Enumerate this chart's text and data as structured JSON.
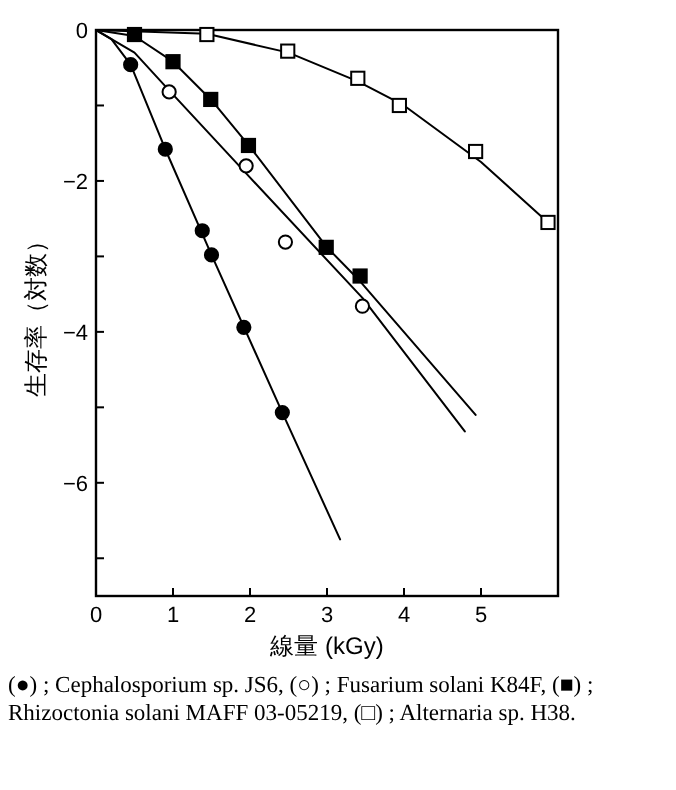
{
  "chart_data": {
    "type": "line",
    "xlabel": "線量 (kGy)",
    "ylabel": "生存率（対数）",
    "xlim": [
      0,
      6
    ],
    "xticks": [
      0,
      1,
      2,
      3,
      4,
      5,
      {
        "value": 6,
        "label": null
      }
    ],
    "ylim": [
      -7.5,
      0
    ],
    "yticks": [
      0,
      {
        "value": -1,
        "label": null
      },
      -2,
      {
        "value": -3,
        "label": null
      },
      -4,
      {
        "value": -5,
        "label": null
      },
      -6,
      {
        "value": -7,
        "label": null
      }
    ],
    "grid": false,
    "line_style": "solid",
    "series": [
      {
        "type": "scatter",
        "marker": "circle",
        "color": "#000000",
        "x": [
          0.45,
          0.9,
          1.38,
          1.5,
          1.92,
          2.42
        ],
        "values": [
          -0.46,
          -1.58,
          -2.66,
          -2.98,
          -3.94,
          -5.07
        ]
      },
      {
        "type": "scatter",
        "marker": "circle",
        "color": "#ffffff",
        "x": [
          0.95,
          1.95,
          2.46,
          3.46
        ],
        "values": [
          -0.82,
          -1.8,
          -2.81,
          -3.66
        ]
      },
      {
        "type": "scatter",
        "marker": "square",
        "color": "#000000",
        "x": [
          0.5,
          1.0,
          1.49,
          1.98,
          2.99,
          3.43
        ],
        "values": [
          -0.06,
          -0.42,
          -0.92,
          -1.53,
          -2.88,
          -3.26
        ]
      },
      {
        "type": "scatter",
        "marker": "square",
        "color": "#ffffff",
        "x": [
          1.44,
          2.49,
          3.4,
          3.94,
          4.93,
          5.87
        ],
        "values": [
          -0.06,
          -0.28,
          -0.64,
          -1.0,
          -1.61,
          -2.55
        ]
      },
      {
        "color": "#000000",
        "x": [
          0,
          0.2,
          0.45,
          0.9,
          1.5,
          2.42,
          3.17
        ],
        "values": [
          0,
          -0.12,
          -0.46,
          -1.58,
          -2.98,
          -5.07,
          -6.75
        ]
      },
      {
        "color": "#000000",
        "x": [
          0,
          0.5,
          0.95,
          1.95,
          3.46,
          4.79
        ],
        "values": [
          0,
          -0.3,
          -0.8,
          -1.9,
          -3.55,
          -5.32
        ]
      },
      {
        "color": "#000000",
        "x": [
          0,
          0.5,
          1.0,
          1.5,
          2.0,
          3.0,
          3.43,
          4.93
        ],
        "values": [
          0,
          -0.08,
          -0.42,
          -0.93,
          -1.55,
          -2.88,
          -3.33,
          -5.1
        ]
      },
      {
        "color": "#000000",
        "x": [
          0,
          1.44,
          2.5,
          3.4,
          4.0,
          5.0,
          5.87
        ],
        "values": [
          0,
          -0.05,
          -0.3,
          -0.68,
          -1.0,
          -1.75,
          -2.55
        ]
      }
    ],
    "annotations": [
      "(●) ; Cephalosporium sp. JS6, (○) ; Fusarium solani K84F, (■) ; Rhizoctonia solani MAFF 03-05219, (□) ; Alternaria sp. H38."
    ]
  }
}
